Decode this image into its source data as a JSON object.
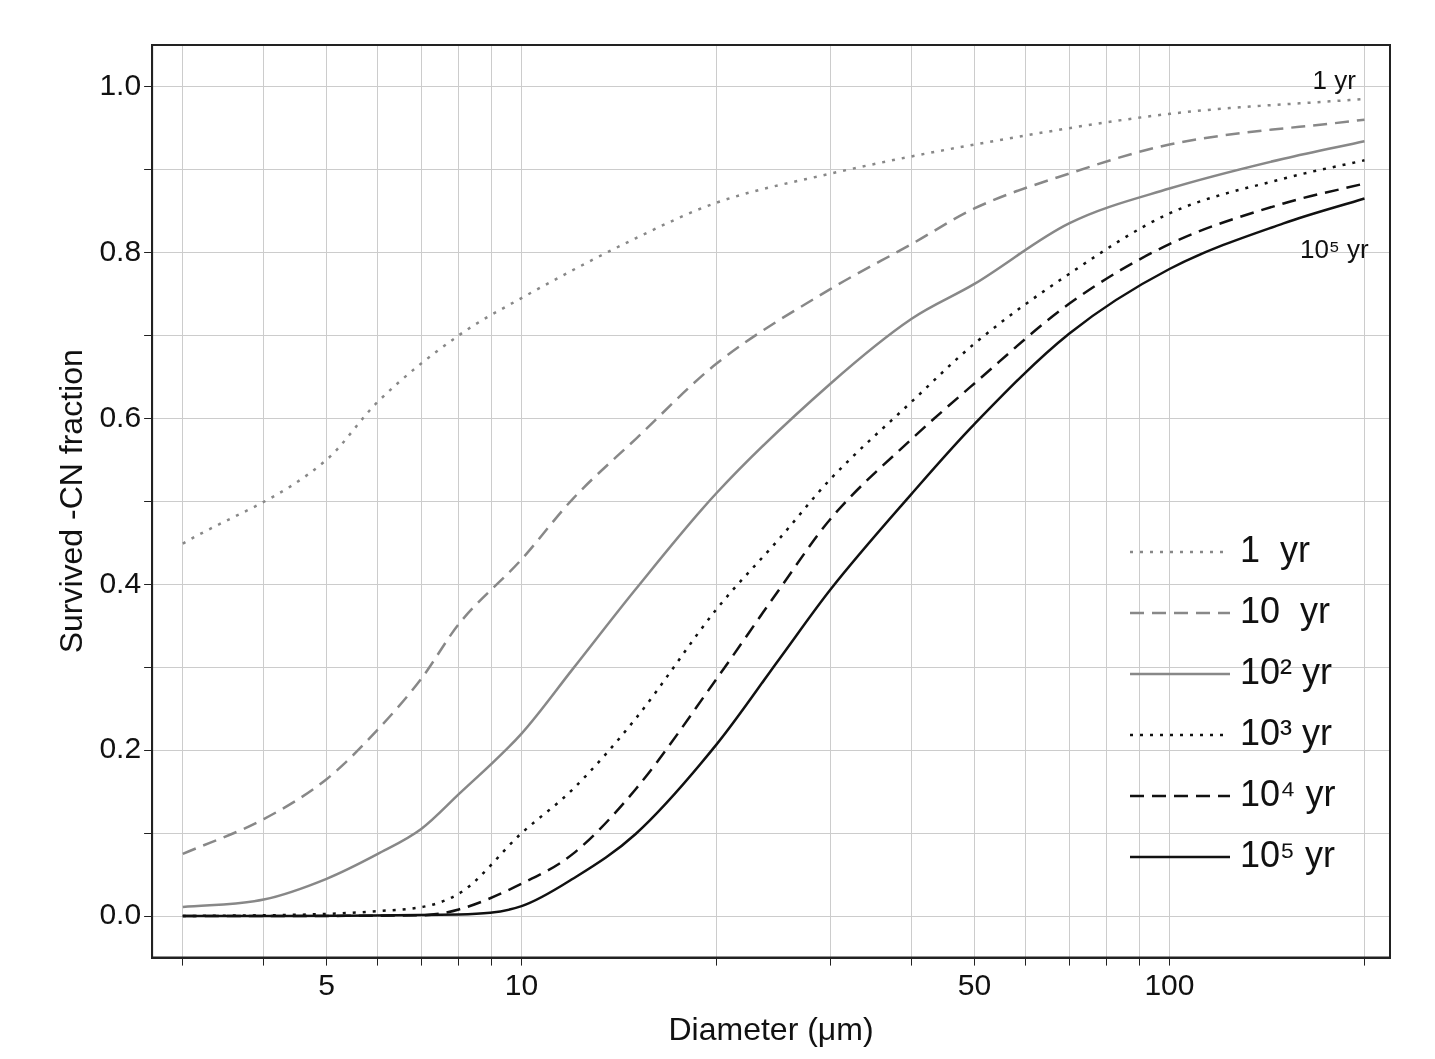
{
  "chart_data": {
    "type": "line",
    "xlabel": "Diameter (μm)",
    "ylabel": "Survived -CN fraction",
    "log": "x",
    "grid": true,
    "legend": "bottom right",
    "marker": "none",
    "xlim": [
      2.69,
      219
    ],
    "ylim": [
      -0.05,
      1.05
    ],
    "xticks": [
      {
        "value": 3,
        "label": null
      },
      {
        "value": 4,
        "label": null
      },
      5,
      {
        "value": 6,
        "label": null
      },
      {
        "value": 7,
        "label": null
      },
      {
        "value": 8,
        "label": null
      },
      {
        "value": 9,
        "label": null
      },
      10,
      {
        "value": 20,
        "label": null
      },
      {
        "value": 30,
        "label": null
      },
      {
        "value": 40,
        "label": null
      },
      50,
      {
        "value": 60,
        "label": null
      },
      {
        "value": 70,
        "label": null
      },
      {
        "value": 80,
        "label": null
      },
      {
        "value": 90,
        "label": null
      },
      100,
      {
        "value": 200,
        "label": null
      }
    ],
    "yticks": [
      {
        "value": 0,
        "label": "0.0"
      },
      {
        "value": 0.1,
        "label": null
      },
      {
        "value": 0.2,
        "label": "0.2"
      },
      {
        "value": 0.3,
        "label": null
      },
      {
        "value": 0.4,
        "label": "0.4"
      },
      {
        "value": 0.5,
        "label": null
      },
      {
        "value": 0.6,
        "label": "0.6"
      },
      {
        "value": 0.7,
        "label": null
      },
      {
        "value": 0.8,
        "label": "0.8"
      },
      {
        "value": 0.9,
        "label": null
      },
      {
        "value": 1,
        "label": "1.0"
      }
    ],
    "annotations": [
      "1 yr",
      "10⁵ yr"
    ],
    "series": [
      {
        "name": "1  yr",
        "color": "#888888",
        "line_style": "dotted",
        "x": [
          3,
          5,
          6,
          8,
          10,
          15,
          20,
          30,
          50,
          100,
          200
        ],
        "values": [
          0.449,
          0.55,
          0.62,
          0.7,
          0.745,
          0.817,
          0.86,
          0.895,
          0.93,
          0.967,
          0.985
        ]
      },
      {
        "name": "10  yr",
        "color": "#888888",
        "line_style": "dashed",
        "x": [
          3,
          4,
          5,
          6,
          7,
          8,
          10,
          12,
          15,
          20,
          30,
          40,
          50,
          70,
          100,
          200
        ],
        "values": [
          0.075,
          0.117,
          0.165,
          0.225,
          0.286,
          0.352,
          0.43,
          0.503,
          0.575,
          0.666,
          0.756,
          0.81,
          0.853,
          0.895,
          0.93,
          0.96
        ]
      },
      {
        "name": "10² yr",
        "color": "#888888",
        "line_style": "solid",
        "x": [
          3,
          4,
          5,
          6,
          7,
          8,
          10,
          12,
          15,
          20,
          30,
          40,
          50,
          70,
          100,
          150,
          200
        ],
        "values": [
          0.011,
          0.02,
          0.045,
          0.075,
          0.105,
          0.147,
          0.22,
          0.298,
          0.394,
          0.51,
          0.642,
          0.72,
          0.762,
          0.835,
          0.877,
          0.913,
          0.934
        ]
      },
      {
        "name": "10³ yr",
        "color": "#111111",
        "line_style": "dotted",
        "x": [
          3,
          6,
          8,
          10,
          12,
          15,
          20,
          25,
          30,
          40,
          50,
          70,
          100,
          150,
          200
        ],
        "values": [
          0,
          0.006,
          0.027,
          0.1,
          0.153,
          0.238,
          0.37,
          0.455,
          0.527,
          0.62,
          0.69,
          0.774,
          0.847,
          0.889,
          0.911
        ]
      },
      {
        "name": "10⁴ yr",
        "color": "#111111",
        "line_style": "dashed",
        "x": [
          3,
          7,
          8,
          10,
          12,
          15,
          20,
          25,
          30,
          40,
          50,
          70,
          100,
          150,
          200
        ],
        "values": [
          0,
          0.001,
          0.008,
          0.039,
          0.075,
          0.153,
          0.286,
          0.394,
          0.479,
          0.575,
          0.642,
          0.738,
          0.81,
          0.859,
          0.883
        ]
      },
      {
        "name": "10⁵ yr",
        "color": "#111111",
        "line_style": "solid",
        "x": [
          3,
          8,
          10,
          12,
          15,
          20,
          25,
          30,
          40,
          50,
          70,
          100,
          150,
          200
        ],
        "values": [
          0,
          0.002,
          0.012,
          0.045,
          0.099,
          0.207,
          0.31,
          0.394,
          0.509,
          0.593,
          0.702,
          0.78,
          0.835,
          0.865
        ]
      }
    ]
  }
}
